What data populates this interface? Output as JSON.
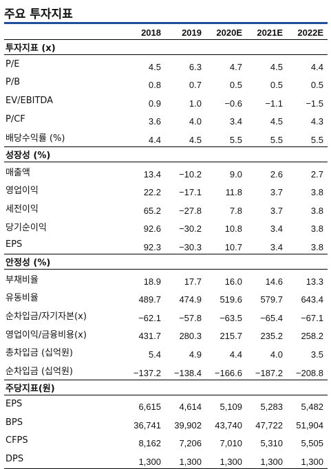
{
  "title": "주요 투자지표",
  "header": [
    "2018",
    "2019",
    "2020E",
    "2021E",
    "2022E"
  ],
  "sections": [
    {
      "name": "투자지표 (x)",
      "rows": [
        {
          "label": "P/E",
          "values": [
            "4.5",
            "6.3",
            "4.7",
            "4.5",
            "4.4"
          ]
        },
        {
          "label": "P/B",
          "values": [
            "0.8",
            "0.7",
            "0.5",
            "0.5",
            "0.5"
          ]
        },
        {
          "label": "EV/EBITDA",
          "values": [
            "0.9",
            "1.0",
            "−0.6",
            "−1.1",
            "−1.5"
          ]
        },
        {
          "label": "P/CF",
          "values": [
            "3.6",
            "4.0",
            "3.4",
            "4.5",
            "4.3"
          ]
        },
        {
          "label": "배당수익률 (%)",
          "values": [
            "4.4",
            "4.5",
            "5.5",
            "5.5",
            "5.5"
          ]
        }
      ]
    },
    {
      "name": "성장성 (%)",
      "rows": [
        {
          "label": "매출액",
          "values": [
            "13.4",
            "−10.2",
            "9.0",
            "2.6",
            "2.7"
          ]
        },
        {
          "label": "영업이익",
          "values": [
            "22.2",
            "−17.1",
            "11.8",
            "3.7",
            "3.8"
          ]
        },
        {
          "label": "세전이익",
          "values": [
            "65.2",
            "−27.8",
            "7.8",
            "3.7",
            "3.8"
          ]
        },
        {
          "label": "당기순이익",
          "values": [
            "92.6",
            "−30.2",
            "10.8",
            "3.4",
            "3.8"
          ]
        },
        {
          "label": "EPS",
          "values": [
            "92.3",
            "−30.3",
            "10.7",
            "3.4",
            "3.8"
          ]
        }
      ]
    },
    {
      "name": "안정성 (%)",
      "rows": [
        {
          "label": "부채비율",
          "values": [
            "18.9",
            "17.7",
            "16.0",
            "14.6",
            "13.3"
          ]
        },
        {
          "label": "유동비율",
          "values": [
            "489.7",
            "474.9",
            "519.6",
            "579.7",
            "643.4"
          ]
        },
        {
          "label": "순차입금/자기자본(x)",
          "values": [
            "−62.1",
            "−57.8",
            "−63.5",
            "−65.4",
            "−67.1"
          ]
        },
        {
          "label": "영업이익/금융비용(x)",
          "values": [
            "431.7",
            "280.3",
            "215.7",
            "235.2",
            "258.2"
          ]
        },
        {
          "label": "총차입금 (십억원)",
          "values": [
            "5.4",
            "4.9",
            "4.4",
            "4.0",
            "3.5"
          ]
        },
        {
          "label": "순차입금 (십억원)",
          "values": [
            "−137.2",
            "−138.4",
            "−166.6",
            "−187.2",
            "−208.8"
          ]
        }
      ]
    },
    {
      "name": "주당지표(원)",
      "rows": [
        {
          "label": "EPS",
          "values": [
            "6,615",
            "4,614",
            "5,109",
            "5,283",
            "5,482"
          ]
        },
        {
          "label": "BPS",
          "values": [
            "36,741",
            "39,902",
            "43,740",
            "47,722",
            "51,904"
          ]
        },
        {
          "label": "CFPS",
          "values": [
            "8,162",
            "7,206",
            "7,010",
            "5,310",
            "5,505"
          ]
        },
        {
          "label": "DPS",
          "values": [
            "1,300",
            "1,300",
            "1,300",
            "1,300",
            "1,300"
          ]
        }
      ]
    }
  ]
}
